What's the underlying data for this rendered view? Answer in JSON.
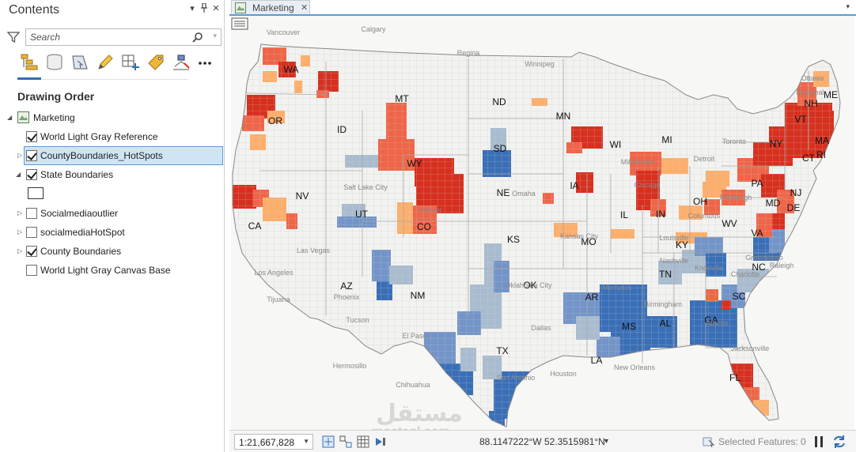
{
  "contents": {
    "title": "Contents",
    "search_placeholder": "Search",
    "section_title": "Drawing Order",
    "map_name": "Marketing",
    "layers": [
      {
        "label": "World Light Gray Reference",
        "checked": true
      },
      {
        "label": "CountyBoundaries_HotSpots",
        "checked": true
      },
      {
        "label": "State Boundaries",
        "checked": true
      },
      {
        "label": "Socialmediaoutlier",
        "checked": false
      },
      {
        "label": "socialmediaHotSpot",
        "checked": false
      },
      {
        "label": "County Boundaries",
        "checked": true
      },
      {
        "label": "World Light Gray Canvas Base",
        "checked": false
      }
    ],
    "tools": [
      "list-by-drawing-order-icon",
      "list-by-data-source-icon",
      "list-by-selection-icon",
      "list-by-editing-icon",
      "list-by-snapping-icon",
      "list-by-labeling-icon",
      "list-perspective-imagery-icon",
      "more-icon"
    ]
  },
  "map_view": {
    "tab_label": "Marketing",
    "scale": "1:21,667,828",
    "coordinates": "88.1147222°W 52.3515981°N",
    "selected_features": "Selected Features: 0",
    "watermark": "مستقل",
    "watermark_sub": "mostaql.com"
  },
  "map": {
    "state_labels": [
      "WA",
      "OR",
      "CA",
      "NV",
      "ID",
      "MT",
      "WY",
      "UT",
      "AZ",
      "CO",
      "NM",
      "ND",
      "SD",
      "NE",
      "KS",
      "OK",
      "TX",
      "MN",
      "IA",
      "MO",
      "AR",
      "LA",
      "WI",
      "IL",
      "MS",
      "MI",
      "IN",
      "KY",
      "TN",
      "AL",
      "GA",
      "FL",
      "SC",
      "NC",
      "OH",
      "WV",
      "VA",
      "PA",
      "NY",
      "MD",
      "DE",
      "NJ",
      "CT",
      "RI",
      "MA",
      "VT",
      "NH",
      "ME"
    ],
    "city_labels": [
      "Vancouver",
      "Calgary",
      "Regina",
      "Winnipeg",
      "Salt Lake City",
      "Las Vegas",
      "Los Angeles",
      "Tijuana",
      "Phoenix",
      "Tucson",
      "El Paso",
      "Hermosillo",
      "Chihuahua",
      "Dallas",
      "Houston",
      "San Antonio",
      "Memphis",
      "Birmingham",
      "Atlanta",
      "New Orleans",
      "Jacksonville",
      "Nashville",
      "Knoxville",
      "Charlotte",
      "Greensboro",
      "Raleigh",
      "Toronto",
      "Ottawa",
      "Montreal",
      "Chicago",
      "Milwaukee",
      "Omaha",
      "Kansas City",
      "Oklahoma City",
      "Louisville",
      "Columbus",
      "Pittsburgh",
      "Detroit",
      "Denver"
    ],
    "hotspot_colors": {
      "hot_99": "#d7301f",
      "hot_95": "#ef6548",
      "hot_90": "#fdae6b",
      "cold_99": "#3a6fb7",
      "cold_95": "#7394c8",
      "cold_90": "#a9bccf",
      "not_significant": "#f2f2f0"
    }
  }
}
